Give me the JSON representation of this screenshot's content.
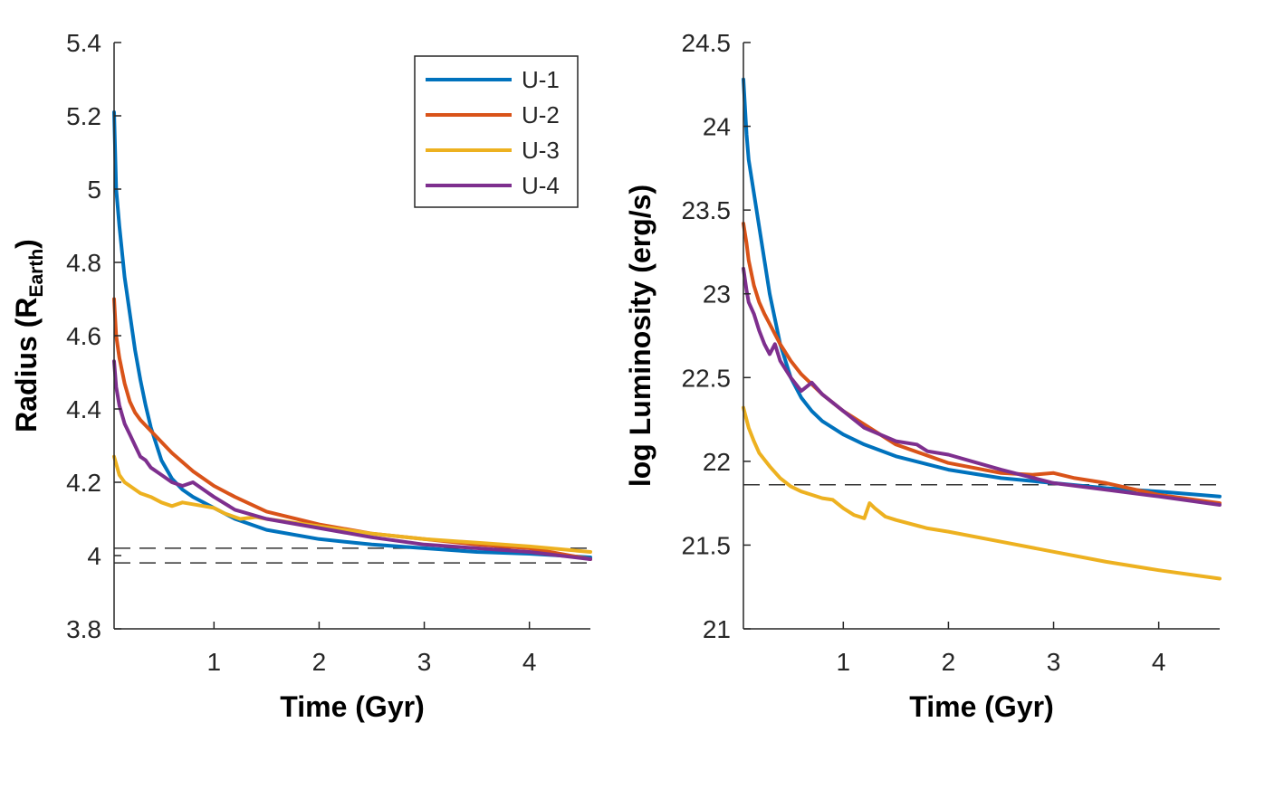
{
  "chart_data": [
    {
      "type": "line",
      "xlabel": "Time (Gyr)",
      "ylabel": "Radius (R",
      "ylabel_sub": "Earth",
      "ylabel_close": ")",
      "xlim": [
        0.05,
        4.58
      ],
      "ylim": [
        3.8,
        5.4
      ],
      "xticks": [
        1,
        2,
        3,
        4
      ],
      "yticks": [
        3.8,
        4,
        4.2,
        4.4,
        4.6,
        4.8,
        5,
        5.2,
        5.4
      ],
      "ytick_labels": [
        "3.8",
        "4",
        "4.2",
        "4.4",
        "4.6",
        "4.8",
        "5",
        "5.2",
        "5.4"
      ],
      "grid": false,
      "legend": {
        "position": "top-right",
        "entries": [
          "U-1",
          "U-2",
          "U-3",
          "U-4"
        ]
      },
      "reference_lines": [
        4.02,
        3.98
      ],
      "series": [
        {
          "name": "U-1",
          "color": "#0072BD",
          "x": [
            0.05,
            0.07,
            0.1,
            0.15,
            0.2,
            0.25,
            0.3,
            0.35,
            0.4,
            0.5,
            0.6,
            0.7,
            0.8,
            1.0,
            1.2,
            1.5,
            2.0,
            2.5,
            3.0,
            3.5,
            4.0,
            4.58
          ],
          "y": [
            5.21,
            5.0,
            4.9,
            4.76,
            4.66,
            4.56,
            4.48,
            4.41,
            4.35,
            4.26,
            4.21,
            4.18,
            4.16,
            4.13,
            4.1,
            4.07,
            4.045,
            4.03,
            4.02,
            4.01,
            4.005,
            3.995
          ]
        },
        {
          "name": "U-2",
          "color": "#D95319",
          "x": [
            0.05,
            0.07,
            0.1,
            0.15,
            0.2,
            0.25,
            0.3,
            0.4,
            0.5,
            0.6,
            0.8,
            1.0,
            1.2,
            1.5,
            2.0,
            2.5,
            3.0,
            3.5,
            4.0,
            4.58
          ],
          "y": [
            4.7,
            4.6,
            4.54,
            4.47,
            4.42,
            4.39,
            4.37,
            4.34,
            4.31,
            4.28,
            4.23,
            4.19,
            4.16,
            4.12,
            4.085,
            4.06,
            4.045,
            4.03,
            4.02,
            3.99
          ]
        },
        {
          "name": "U-3",
          "color": "#EDB120",
          "x": [
            0.05,
            0.1,
            0.15,
            0.2,
            0.3,
            0.4,
            0.5,
            0.6,
            0.7,
            0.8,
            0.9,
            1.0,
            1.1,
            1.2,
            1.25,
            1.4,
            1.5,
            2.0,
            2.5,
            3.0,
            3.5,
            4.0,
            4.58
          ],
          "y": [
            4.27,
            4.22,
            4.2,
            4.19,
            4.17,
            4.16,
            4.145,
            4.135,
            4.145,
            4.14,
            4.135,
            4.13,
            4.115,
            4.105,
            4.1,
            4.105,
            4.1,
            4.08,
            4.06,
            4.045,
            4.035,
            4.025,
            4.01
          ]
        },
        {
          "name": "U-4",
          "color": "#7E2F8E",
          "x": [
            0.05,
            0.07,
            0.1,
            0.15,
            0.2,
            0.25,
            0.3,
            0.35,
            0.4,
            0.5,
            0.6,
            0.7,
            0.8,
            0.9,
            1.0,
            1.2,
            1.5,
            2.0,
            2.5,
            3.0,
            3.5,
            4.0,
            4.58
          ],
          "y": [
            4.53,
            4.46,
            4.41,
            4.36,
            4.33,
            4.3,
            4.27,
            4.26,
            4.24,
            4.22,
            4.2,
            4.19,
            4.2,
            4.18,
            4.16,
            4.125,
            4.1,
            4.075,
            4.05,
            4.03,
            4.02,
            4.01,
            3.99
          ]
        }
      ]
    },
    {
      "type": "line",
      "xlabel": "Time (Gyr)",
      "ylabel": "log Luminosity (erg/s)",
      "xlim": [
        0.05,
        4.58
      ],
      "ylim": [
        21,
        24.5
      ],
      "xticks": [
        1,
        2,
        3,
        4
      ],
      "yticks": [
        21,
        21.5,
        22,
        22.5,
        23,
        23.5,
        24,
        24.5
      ],
      "ytick_labels": [
        "21",
        "21.5",
        "22",
        "22.5",
        "23",
        "23.5",
        "24",
        "24.5"
      ],
      "grid": false,
      "reference_lines": [
        21.86
      ],
      "series": [
        {
          "name": "U-1",
          "color": "#0072BD",
          "x": [
            0.05,
            0.08,
            0.1,
            0.15,
            0.2,
            0.25,
            0.3,
            0.35,
            0.4,
            0.5,
            0.6,
            0.7,
            0.8,
            1.0,
            1.2,
            1.5,
            2.0,
            2.5,
            3.0,
            3.5,
            4.0,
            4.58
          ],
          "y": [
            24.28,
            23.95,
            23.8,
            23.6,
            23.4,
            23.2,
            23.0,
            22.85,
            22.7,
            22.5,
            22.38,
            22.3,
            22.24,
            22.16,
            22.1,
            22.03,
            21.95,
            21.9,
            21.87,
            21.84,
            21.82,
            21.79
          ]
        },
        {
          "name": "U-2",
          "color": "#D95319",
          "x": [
            0.05,
            0.08,
            0.1,
            0.15,
            0.2,
            0.25,
            0.3,
            0.4,
            0.5,
            0.6,
            0.8,
            1.0,
            1.2,
            1.5,
            2.0,
            2.5,
            2.8,
            3.0,
            3.2,
            3.5,
            4.0,
            4.58
          ],
          "y": [
            23.42,
            23.3,
            23.2,
            23.05,
            22.95,
            22.88,
            22.82,
            22.7,
            22.6,
            22.52,
            22.4,
            22.3,
            22.22,
            22.1,
            21.99,
            21.93,
            21.92,
            21.93,
            21.9,
            21.87,
            21.8,
            21.75
          ]
        },
        {
          "name": "U-3",
          "color": "#EDB120",
          "x": [
            0.05,
            0.1,
            0.15,
            0.2,
            0.3,
            0.4,
            0.5,
            0.6,
            0.7,
            0.8,
            0.9,
            1.0,
            1.1,
            1.2,
            1.25,
            1.3,
            1.4,
            1.5,
            1.8,
            2.0,
            2.5,
            3.0,
            3.5,
            4.0,
            4.58
          ],
          "y": [
            22.32,
            22.2,
            22.12,
            22.05,
            21.97,
            21.9,
            21.85,
            21.82,
            21.8,
            21.78,
            21.77,
            21.72,
            21.68,
            21.66,
            21.75,
            21.72,
            21.67,
            21.65,
            21.6,
            21.58,
            21.52,
            21.46,
            21.4,
            21.35,
            21.3
          ]
        },
        {
          "name": "U-4",
          "color": "#7E2F8E",
          "x": [
            0.05,
            0.08,
            0.1,
            0.15,
            0.2,
            0.25,
            0.3,
            0.35,
            0.4,
            0.5,
            0.6,
            0.7,
            0.8,
            1.0,
            1.2,
            1.5,
            1.7,
            1.8,
            2.0,
            2.5,
            3.0,
            3.5,
            4.0,
            4.58
          ],
          "y": [
            23.15,
            23.02,
            22.95,
            22.88,
            22.78,
            22.7,
            22.64,
            22.7,
            22.6,
            22.5,
            22.42,
            22.47,
            22.4,
            22.3,
            22.2,
            22.12,
            22.1,
            22.06,
            22.04,
            21.95,
            21.87,
            21.83,
            21.79,
            21.74
          ]
        }
      ]
    }
  ]
}
